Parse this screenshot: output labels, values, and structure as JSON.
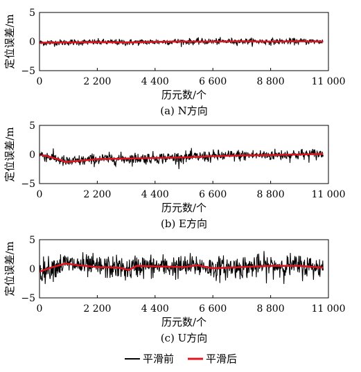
{
  "chart_data": [
    {
      "type": "line",
      "caption": "(a) N方向",
      "xlabel": "历元数/个",
      "ylabel": "定位误差/m",
      "xlim": [
        0,
        11000
      ],
      "ylim": [
        -5,
        5
      ],
      "xticks": [
        0,
        2200,
        4400,
        6600,
        8800,
        11000
      ],
      "xtick_labels": [
        "0",
        "2 200",
        "4 400",
        "6 600",
        "8 800",
        "11 000"
      ],
      "yticks": [
        5,
        0,
        -5
      ],
      "ytick_labels": [
        "5",
        "0",
        "−5"
      ],
      "series": [
        {
          "name": "平滑前",
          "color": "#000000",
          "x_range": [
            0,
            10800
          ],
          "approx_amplitude": 0.6
        },
        {
          "name": "平滑后",
          "color": "#e0141e",
          "x": [
            0,
            1000,
            2200,
            3300,
            4400,
            5500,
            6600,
            7700,
            8800,
            9900,
            10800
          ],
          "values": [
            -0.2,
            -0.15,
            -0.1,
            -0.15,
            -0.05,
            0.0,
            0.0,
            0.05,
            0.0,
            0.05,
            0.0
          ]
        }
      ]
    },
    {
      "type": "line",
      "caption": "(b) E方向",
      "xlabel": "历元数/个",
      "ylabel": "定位误差/m",
      "xlim": [
        0,
        11000
      ],
      "ylim": [
        -5,
        5
      ],
      "xticks": [
        0,
        2200,
        4400,
        6600,
        8800,
        11000
      ],
      "xtick_labels": [
        "0",
        "2 200",
        "4 400",
        "6 600",
        "8 800",
        "11 000"
      ],
      "yticks": [
        5,
        0,
        -5
      ],
      "ytick_labels": [
        "5",
        "0",
        "−5"
      ],
      "series": [
        {
          "name": "平滑前",
          "color": "#000000",
          "x_range": [
            0,
            10800
          ],
          "approx_amplitude": 1.1
        },
        {
          "name": "平滑后",
          "color": "#e0141e",
          "x": [
            0,
            300,
            700,
            1000,
            1500,
            2200,
            3300,
            4400,
            5500,
            6600,
            7700,
            8800,
            9900,
            10800
          ],
          "values": [
            0.0,
            -0.3,
            -0.8,
            -1.3,
            -1.1,
            -0.8,
            -0.7,
            -0.6,
            -0.5,
            -0.3,
            -0.15,
            -0.1,
            0.0,
            0.1
          ]
        }
      ]
    },
    {
      "type": "line",
      "caption": "(c) U方向",
      "xlabel": "历元数/个",
      "ylabel": "定位误差/m",
      "xlim": [
        0,
        11000
      ],
      "ylim": [
        -5,
        5
      ],
      "xticks": [
        0,
        2200,
        4400,
        6600,
        8800,
        11000
      ],
      "xtick_labels": [
        "0",
        "2 200",
        "4 400",
        "6 600",
        "8 800",
        "11 000"
      ],
      "yticks": [
        5,
        0,
        -5
      ],
      "ytick_labels": [
        "5",
        "0",
        "−5"
      ],
      "series": [
        {
          "name": "平滑前",
          "color": "#000000",
          "x_range": [
            0,
            10800
          ],
          "approx_amplitude": 2.2
        },
        {
          "name": "平滑后",
          "color": "#e0141e",
          "x": [
            0,
            500,
            1000,
            1500,
            2200,
            3000,
            3400,
            3700,
            4400,
            5500,
            6000,
            6600,
            7700,
            8800,
            9900,
            10800
          ],
          "values": [
            -0.5,
            0.3,
            0.9,
            0.6,
            0.3,
            0.2,
            -0.2,
            0.5,
            0.4,
            0.3,
            0.6,
            0.1,
            0.3,
            0.5,
            0.5,
            0.2
          ]
        }
      ]
    }
  ],
  "legend": {
    "position": "bottom-center",
    "items": [
      {
        "label": "平滑前",
        "color": "#000000"
      },
      {
        "label": "平滑后",
        "color": "#e0141e"
      }
    ]
  }
}
